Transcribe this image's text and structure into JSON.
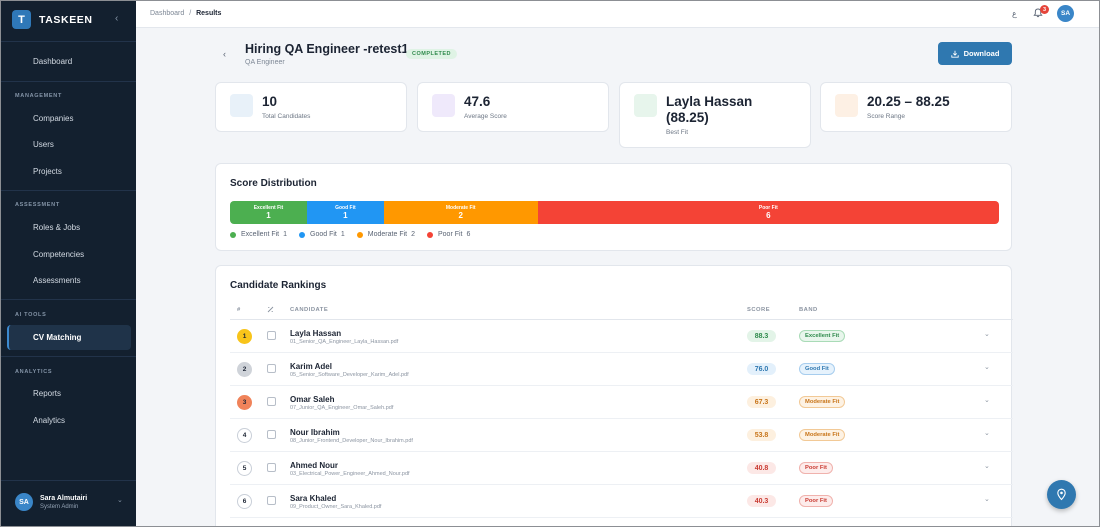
{
  "app": {
    "name": "TASKEEN",
    "logo_letter": "T"
  },
  "sidebar": {
    "dashboard": "Dashboard",
    "sections": {
      "management": "MANAGEMENT",
      "assessment": "ASSESSMENT",
      "ai_tools": "AI TOOLS",
      "analytics": "ANALYTICS"
    },
    "items": {
      "companies": "Companies",
      "users": "Users",
      "projects": "Projects",
      "roles_jobs": "Roles & Jobs",
      "competencies": "Competencies",
      "assessments": "Assessments",
      "cv_matching": "CV Matching",
      "reports": "Reports",
      "analytics": "Analytics"
    },
    "user": {
      "initials": "SA",
      "name": "Sara Almutairi",
      "role": "System Admin"
    }
  },
  "topbar": {
    "breadcrumb": {
      "root": "Dashboard",
      "sep": "/",
      "current": "Results"
    },
    "lang": "ع",
    "notification_count": "3",
    "avatar": "SA"
  },
  "header": {
    "title": "Hiring QA Engineer -retest1",
    "status": "COMPLETED",
    "subtitle": "QA Engineer",
    "download_label": "Download"
  },
  "stats": {
    "total": {
      "value": "10",
      "label": "Total Candidates"
    },
    "average": {
      "value": "47.6",
      "label": "Average Score"
    },
    "best": {
      "value": "Layla Hassan (88.25)",
      "label": "Best Fit"
    },
    "range": {
      "value": "20.25 – 88.25",
      "label": "Score Range"
    }
  },
  "distribution": {
    "title": "Score Distribution",
    "segments": [
      {
        "label": "Excellent Fit",
        "count": "1",
        "flex": 1,
        "color": "#4caf50"
      },
      {
        "label": "Good Fit",
        "count": "1",
        "flex": 1,
        "color": "#2196f3"
      },
      {
        "label": "Moderate Fit",
        "count": "2",
        "flex": 2,
        "color": "#ff9800"
      },
      {
        "label": "Poor Fit",
        "count": "6",
        "flex": 6,
        "color": "#f44336"
      }
    ],
    "legend": [
      {
        "label": "Excellent Fit",
        "count": "1"
      },
      {
        "label": "Good Fit",
        "count": "1"
      },
      {
        "label": "Moderate Fit",
        "count": "2"
      },
      {
        "label": "Poor Fit",
        "count": "6"
      }
    ]
  },
  "rankings": {
    "title": "Candidate Rankings",
    "columns": {
      "rank": "#",
      "candidate": "CANDIDATE",
      "score": "SCORE",
      "band": "BAND"
    },
    "rows": [
      {
        "rank": "1",
        "name": "Layla Hassan",
        "file": "01_Senior_QA_Engineer_Layla_Hassan.pdf",
        "score": "88.3",
        "band": "Excellent Fit"
      },
      {
        "rank": "2",
        "name": "Karim Adel",
        "file": "05_Senior_Software_Developer_Karim_Adel.pdf",
        "score": "76.0",
        "band": "Good Fit"
      },
      {
        "rank": "3",
        "name": "Omar Saleh",
        "file": "07_Junior_QA_Engineer_Omar_Saleh.pdf",
        "score": "67.3",
        "band": "Moderate Fit"
      },
      {
        "rank": "4",
        "name": "Nour Ibrahim",
        "file": "08_Junior_Frontend_Developer_Nour_Ibrahim.pdf",
        "score": "53.8",
        "band": "Moderate Fit"
      },
      {
        "rank": "5",
        "name": "Ahmed Nour",
        "file": "03_Electrical_Power_Engineer_Ahmed_Nour.pdf",
        "score": "40.8",
        "band": "Poor Fit"
      },
      {
        "rank": "6",
        "name": "Sara Khaled",
        "file": "09_Product_Owner_Sara_Khaled.pdf",
        "score": "40.3",
        "band": "Poor Fit"
      }
    ]
  }
}
